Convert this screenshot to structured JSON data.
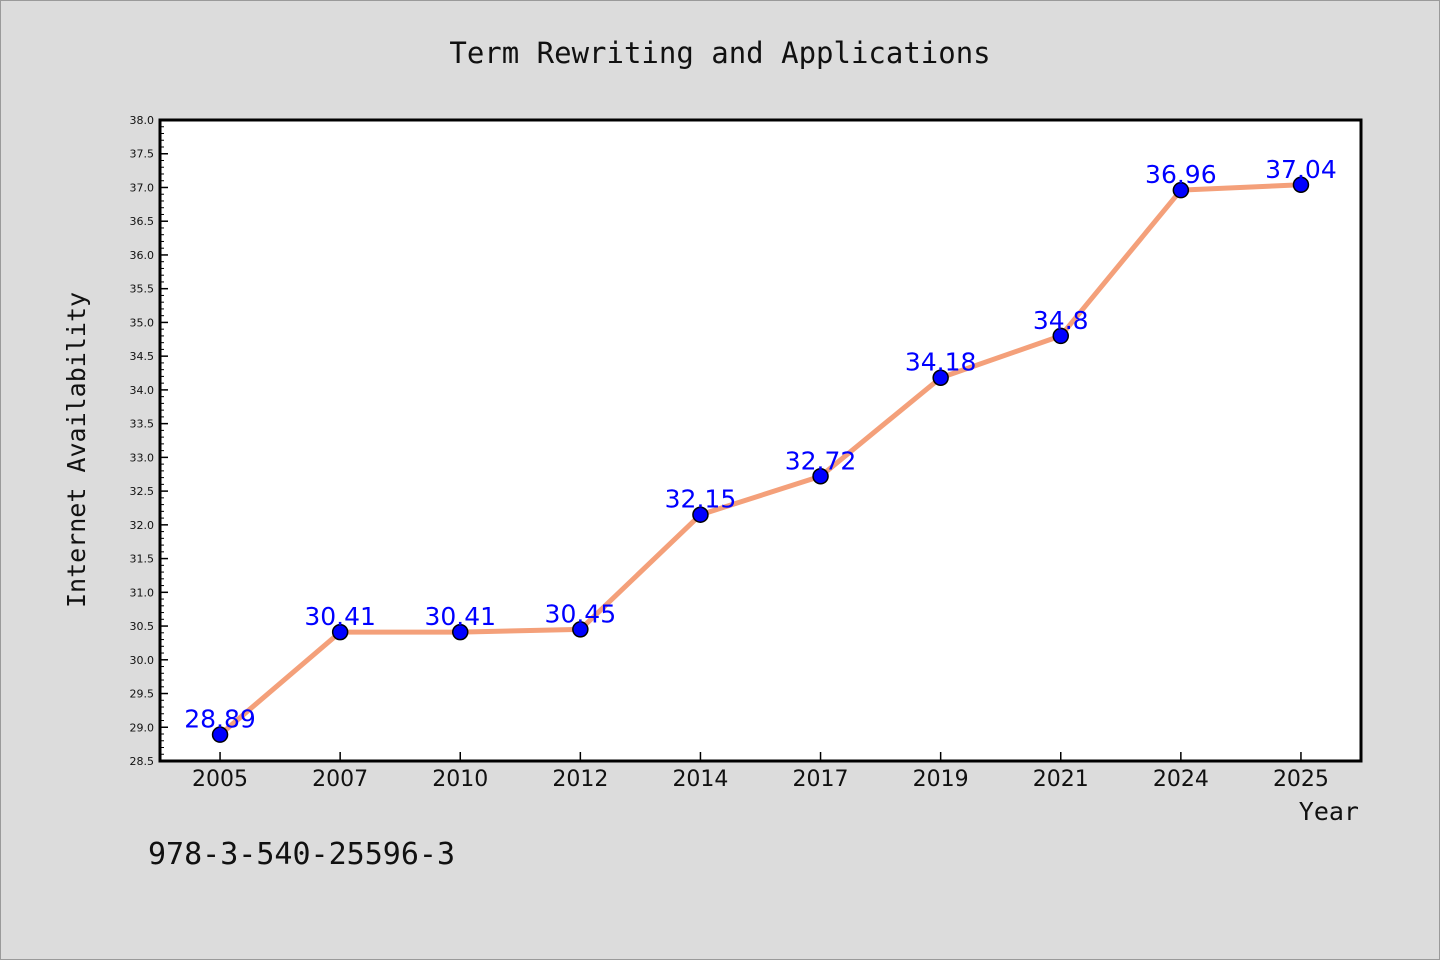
{
  "chart_data": {
    "type": "line",
    "title": "Term Rewriting and Applications",
    "xlabel": "Year",
    "ylabel": "Internet Availability",
    "categories": [
      "2005",
      "2007",
      "2010",
      "2012",
      "2014",
      "2017",
      "2019",
      "2021",
      "2024",
      "2025"
    ],
    "series": [
      {
        "values": [
          28.89,
          30.41,
          30.41,
          30.45,
          32.15,
          32.72,
          34.18,
          34.8,
          36.96,
          37.04
        ],
        "data_labels": [
          "28.89",
          "30.41",
          "30.41",
          "30.45",
          "32.15",
          "32.72",
          "34.18",
          "34.8",
          "36.96",
          "37.04"
        ],
        "line_color": "#f4a07a",
        "marker_color": "#0000ff"
      }
    ],
    "ylim": [
      28.5,
      38.0
    ],
    "ytick_step": 0.5,
    "grid": false,
    "legend": "none"
  },
  "footer_text": "978-3-540-25596-3",
  "colors": {
    "background": "#dcdcdc",
    "plot_area": "#ffffff",
    "label_color": "#0000ff"
  }
}
